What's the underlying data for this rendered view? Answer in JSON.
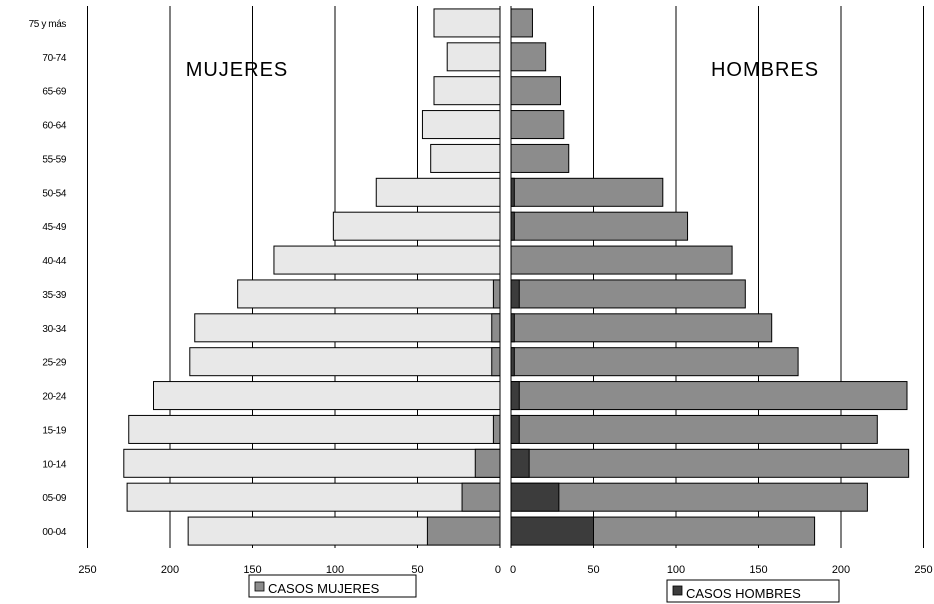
{
  "chart_data": {
    "type": "bar",
    "orientation": "horizontal",
    "subtype": "population-pyramid",
    "categories": [
      "00-04",
      "05-09",
      "10-14",
      "15-19",
      "20-24",
      "25-29",
      "30-34",
      "35-39",
      "40-44",
      "45-49",
      "50-54",
      "55-59",
      "60-64",
      "65-69",
      "70-74",
      "75 y más"
    ],
    "left_panel": {
      "title": "MUJERES",
      "xlim": [
        0,
        250
      ],
      "ticks": [
        0,
        50,
        100,
        150,
        200,
        250
      ],
      "series": [
        {
          "name": "",
          "color": "#e8e8e8",
          "values": [
            189,
            226,
            228,
            225,
            210,
            188,
            185,
            159,
            137,
            101,
            75,
            42,
            47,
            40,
            32,
            40
          ]
        },
        {
          "name": "CASOS MUJERES",
          "color": "#8c8c8c",
          "values": [
            44,
            23,
            15,
            4,
            0,
            5,
            5,
            4,
            0,
            0,
            0,
            0,
            0,
            0,
            0,
            0
          ]
        }
      ]
    },
    "right_panel": {
      "title": "HOMBRES",
      "xlim": [
        0,
        250
      ],
      "ticks": [
        0,
        50,
        100,
        150,
        200,
        250
      ],
      "series": [
        {
          "name": "",
          "color": "#8c8c8c",
          "values": [
            184,
            216,
            241,
            222,
            240,
            174,
            158,
            142,
            134,
            107,
            92,
            35,
            32,
            30,
            21,
            13
          ]
        },
        {
          "name": "CASOS HOMBRES",
          "color": "#3c3c3c",
          "values": [
            50,
            29,
            11,
            5,
            5,
            2,
            2,
            5,
            0,
            2,
            2,
            0,
            0,
            0,
            0,
            0
          ]
        }
      ]
    },
    "legend": [
      {
        "label": "CASOS MUJERES",
        "swatch_color": "#8c8c8c",
        "placement": "bottom-left"
      },
      {
        "label": "CASOS HOMBRES",
        "swatch_color": "#3c3c3c",
        "placement": "bottom-right"
      }
    ],
    "grid": true
  }
}
